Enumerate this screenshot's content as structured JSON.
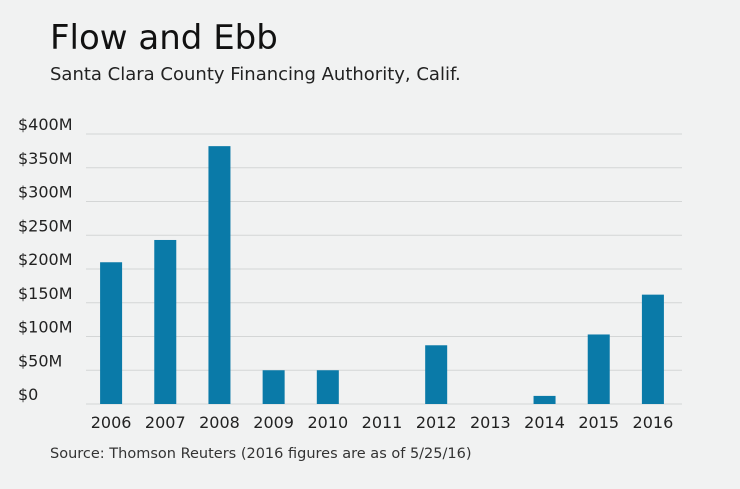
{
  "colors": {
    "bar": "#0a7aa8",
    "grid": "#d4d6d6",
    "background": "#f1f2f2"
  },
  "chart_data": {
    "type": "bar",
    "title": "Flow and Ebb",
    "subtitle": "Santa Clara County Financing Authority, Calif.",
    "source": "Source: Thomson Reuters (2016 figures are as of 5/25/16)",
    "categories": [
      "2006",
      "2007",
      "2008",
      "2009",
      "2010",
      "2011",
      "2012",
      "2013",
      "2014",
      "2015",
      "2016"
    ],
    "values": [
      210,
      243,
      382,
      50,
      50,
      0,
      87,
      0,
      12,
      103,
      162
    ],
    "value_unit": "$M",
    "ylim": [
      0,
      400
    ],
    "yticks": [
      0,
      50,
      100,
      150,
      200,
      250,
      300,
      350,
      400
    ],
    "ytick_labels": [
      "$0",
      "$50M",
      "$100M",
      "$150M",
      "$200M",
      "$250M",
      "$300M",
      "$350M",
      "$400M"
    ],
    "grid": true,
    "legend": false
  }
}
